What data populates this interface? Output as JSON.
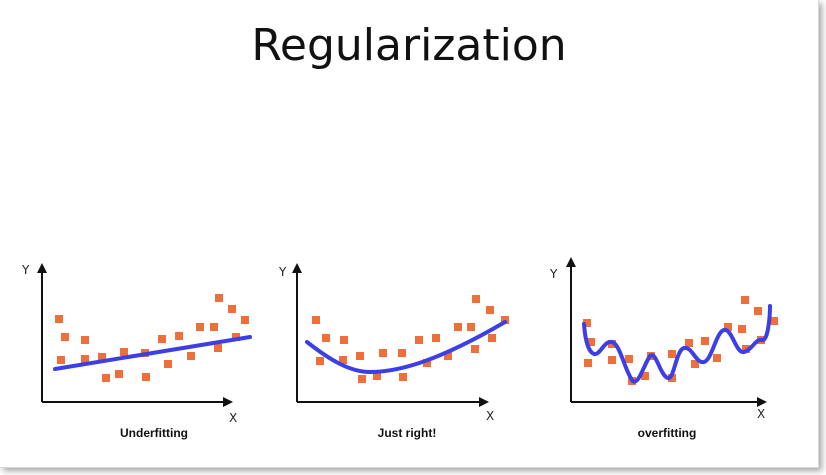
{
  "slide": {
    "title": "Regularization"
  },
  "colors": {
    "point": "#ee6f3a",
    "fit_line": "#3d3fe6",
    "axis": "#111111"
  },
  "panels": [
    {
      "caption": "Underfitting",
      "y_axis_label": "Y",
      "x_axis_label": "X",
      "fit": "linear"
    },
    {
      "caption": "Just right!",
      "y_axis_label": "Y",
      "x_axis_label": "X",
      "fit": "smooth-curve"
    },
    {
      "caption": "overfitting",
      "y_axis_label": "Y",
      "x_axis_label": "X",
      "fit": "wiggly-curve"
    }
  ]
}
